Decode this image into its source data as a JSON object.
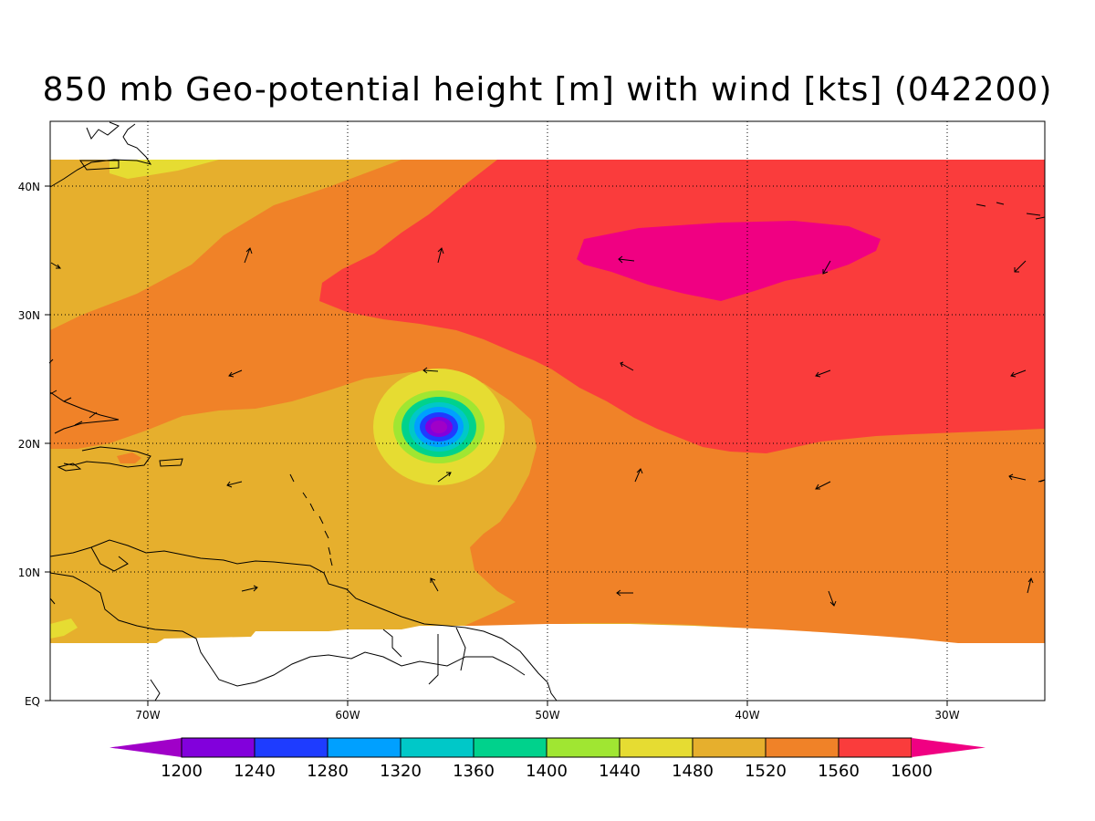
{
  "title": "850 mb Geo-potential height [m] with wind [kts] (042200)",
  "axes": {
    "x_ticks": [
      "70W",
      "60W",
      "50W",
      "40W",
      "30W"
    ],
    "y_ticks": [
      "EQ",
      "10N",
      "20N",
      "30N",
      "40N"
    ]
  },
  "colorbar": {
    "labels": [
      "1200",
      "1240",
      "1280",
      "1320",
      "1360",
      "1400",
      "1440",
      "1480",
      "1520",
      "1560",
      "1600"
    ],
    "colors": [
      "#a000c8",
      "#8200dc",
      "#1e3cff",
      "#00a0ff",
      "#00c8c8",
      "#00d28c",
      "#a0e632",
      "#e6dc32",
      "#e6af2d",
      "#f08228",
      "#fa3c3c",
      "#f00082"
    ]
  },
  "fill_colors": {
    "c1480": "#e6dc32",
    "c1520": "#e6af2d",
    "c1560": "#f08228",
    "c1600": "#fa3c3c",
    "c1640": "#f00082"
  },
  "chart_data": {
    "type": "heatmap",
    "variable": "850 mb Geo-potential height",
    "units": "m",
    "lon_range": [
      -75,
      -25
    ],
    "lat_range": [
      0,
      45
    ],
    "levels": [
      1200,
      1240,
      1280,
      1320,
      1360,
      1400,
      1440,
      1480,
      1520,
      1560,
      1600
    ],
    "features": [
      {
        "kind": "low",
        "lon": -55.3,
        "lat": 21.5,
        "min_value": 1200
      },
      {
        "kind": "high",
        "lon": -41,
        "lat": 34.5,
        "max_value": 1640
      }
    ],
    "grid": true
  }
}
